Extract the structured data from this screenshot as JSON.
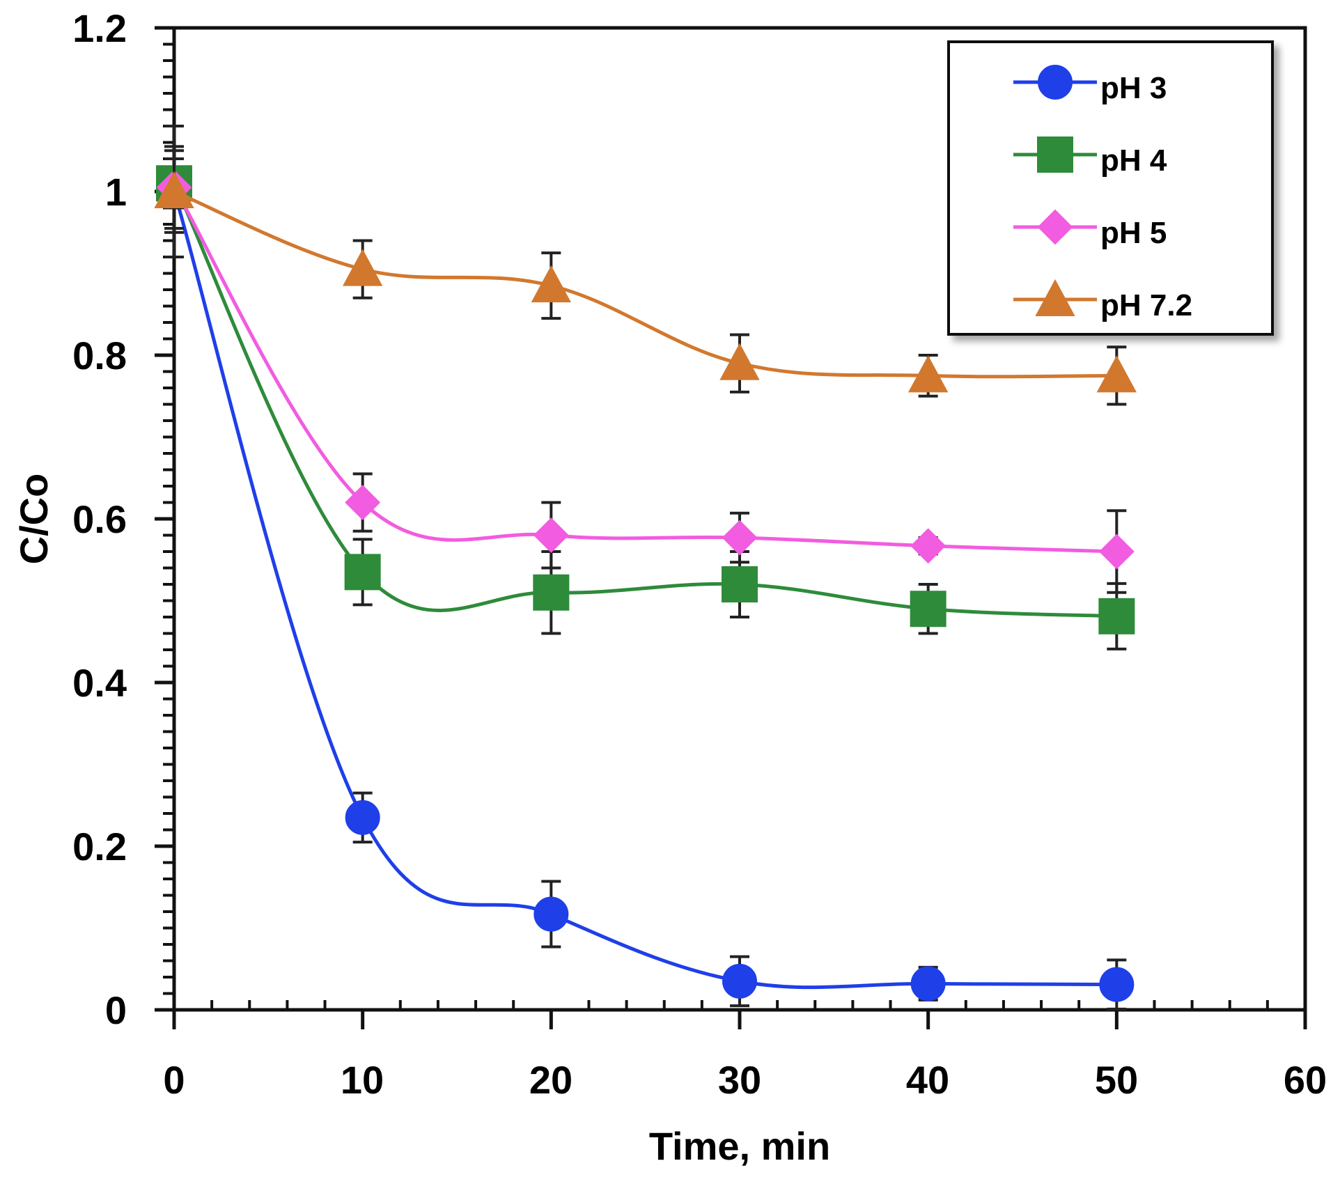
{
  "chart_data": {
    "type": "line",
    "xlabel": "Time, min",
    "ylabel": "C/Co",
    "xlim": [
      0,
      60
    ],
    "ylim": [
      0,
      1.2
    ],
    "xticks": [
      "0",
      "10",
      "20",
      "30",
      "40",
      "50",
      "60"
    ],
    "yticks": [
      "0",
      "0.2",
      "0.4",
      "0.6",
      "0.8",
      "1",
      "1.2"
    ],
    "grid": false,
    "legend_position": "top-right",
    "x": [
      0,
      10,
      20,
      30,
      40,
      50
    ],
    "series": [
      {
        "name": "pH 3",
        "color": "#1f3fe8",
        "marker": "circle",
        "values": [
          1.0,
          0.235,
          0.117,
          0.035,
          0.032,
          0.031
        ],
        "errors": [
          0.05,
          0.03,
          0.04,
          0.03,
          0.02,
          0.03
        ]
      },
      {
        "name": "pH 4",
        "color": "#2e8b3a",
        "marker": "square",
        "values": [
          1.01,
          0.535,
          0.51,
          0.52,
          0.49,
          0.481
        ],
        "errors": [
          0.03,
          0.04,
          0.05,
          0.04,
          0.03,
          0.04
        ]
      },
      {
        "name": "pH 5",
        "color": "#f25ce0",
        "marker": "diamond",
        "values": [
          1.005,
          0.62,
          0.58,
          0.577,
          0.567,
          0.56
        ],
        "errors": [
          0.05,
          0.035,
          0.04,
          0.03,
          0.01,
          0.05
        ]
      },
      {
        "name": "pH 7.2",
        "color": "#d2782e",
        "marker": "triangle",
        "values": [
          1.0,
          0.905,
          0.885,
          0.79,
          0.775,
          0.775
        ],
        "errors": [
          0.08,
          0.035,
          0.04,
          0.035,
          0.025,
          0.035
        ]
      }
    ]
  }
}
